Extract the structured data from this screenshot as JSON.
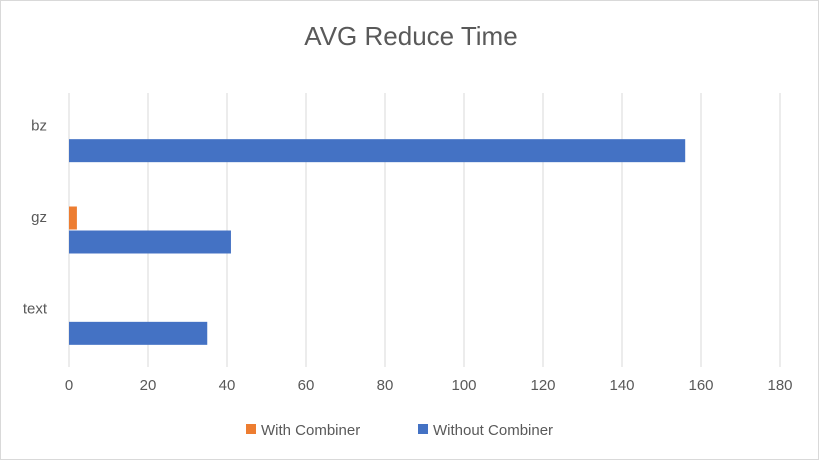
{
  "chart_data": {
    "type": "bar",
    "orientation": "horizontal",
    "title": "AVG Reduce Time",
    "xlabel": "",
    "ylabel": "",
    "categories": [
      "bz",
      "gz",
      "text"
    ],
    "series": [
      {
        "name": "With Combiner",
        "values": [
          0,
          2,
          0
        ],
        "color": "#ED7D31"
      },
      {
        "name": "Without Combiner",
        "values": [
          156,
          41,
          35
        ],
        "color": "#4472C4"
      }
    ],
    "xlim": [
      0,
      180
    ],
    "xticks": [
      0,
      20,
      40,
      60,
      80,
      100,
      120,
      140,
      160,
      180
    ],
    "grid": true,
    "legend_position": "bottom"
  }
}
